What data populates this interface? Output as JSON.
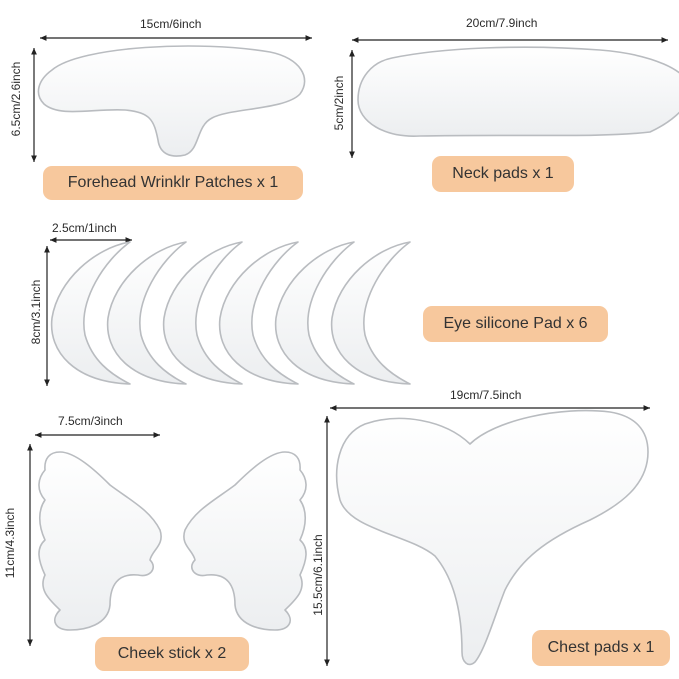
{
  "forehead": {
    "width_label": "15cm/6inch",
    "height_label": "6.5cm/2.6inch",
    "caption": "Forehead Wrinklr Patches x 1"
  },
  "neck": {
    "width_label": "20cm/7.9inch",
    "height_label": "5cm/2inch",
    "caption": "Neck pads x 1"
  },
  "eye": {
    "width_label": "2.5cm/1inch",
    "height_label": "8cm/3.1inch",
    "caption": "Eye silicone Pad x 6"
  },
  "cheek": {
    "width_label": "7.5cm/3inch",
    "height_label": "11cm/4.3inch",
    "caption": "Cheek stick x 2"
  },
  "chest": {
    "width_label": "19cm/7.5inch",
    "height_label": "15.5cm/6.1inch",
    "caption": "Chest pads x 1"
  },
  "colors": {
    "label_bg": "#f7c89d",
    "pad_fill": "#f4f5f6",
    "pad_edge": "#b9bcc0",
    "dimension_line": "#222222"
  }
}
